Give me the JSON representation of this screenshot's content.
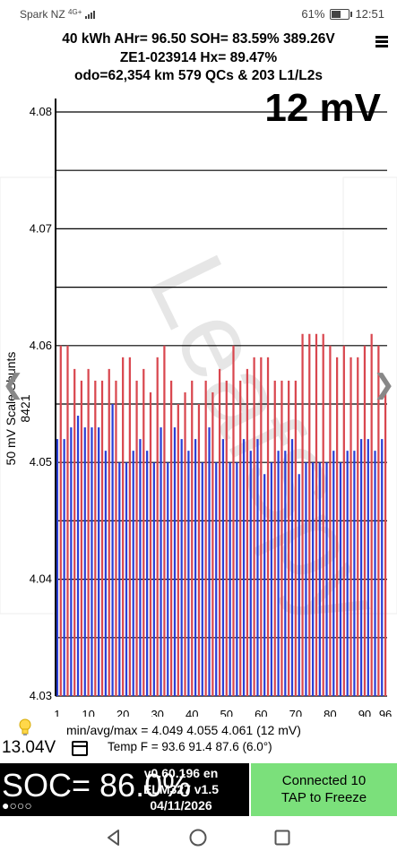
{
  "status_bar": {
    "carrier": "Spark NZ",
    "network": "4G+",
    "battery_percent": "61%",
    "battery_level": 0.61,
    "time": "12:51"
  },
  "info": {
    "line1": "40 kWh  AHr= 96.50 SOH= 83.59% 389.26V",
    "line2": "ZE1-023914   Hx= 89.47%",
    "line3": "odo=62,354 km 579 QCs & 203 L1/L2s"
  },
  "range_label": "12 mV",
  "y_axis_label": "50 mV Scale Shunts 8421",
  "stats_line": "min/avg/max = 4.049 4.055 4.061  (12 mV)",
  "temp_line": "Temp F = 93.6  91.4  87.6  (6.0°)",
  "voltage_12v": "13.04V",
  "soc_text": "SOC= 86.0%",
  "soc_dots": "●○○○",
  "version": {
    "app": "v0.60.196 en",
    "adapter": "ELM327 v1.5",
    "date": "04/11/2026"
  },
  "connected": {
    "line1": "Connected 10",
    "line2": "TAP to Freeze"
  },
  "colors": {
    "bar_red": "#d9474f",
    "bar_blue": "#2b3fd6",
    "connected_bg": "#7be07b",
    "soc_bg": "#000000"
  },
  "icons": [
    "lightbulb-icon",
    "calendar-icon",
    "menu-icon",
    "back-icon",
    "home-icon",
    "recents-icon",
    "chevron-left-icon",
    "chevron-right-icon"
  ],
  "chart_data": {
    "type": "bar",
    "title": "",
    "xlabel": "",
    "ylabel": "50 mV Scale Shunts 8421",
    "ylim": [
      4.03,
      4.08
    ],
    "y_ticks": [
      "4.03",
      "4.04",
      "4.05",
      "4.06",
      "4.07",
      "4.08"
    ],
    "x_ticks": [
      "1",
      "10",
      "20",
      "30",
      "40",
      "50",
      "60",
      "70",
      "80",
      "90",
      "96"
    ],
    "series": [
      {
        "values": [
          4.052,
          4.06,
          4.052,
          4.06,
          4.053,
          4.058,
          4.054,
          4.057,
          4.053,
          4.058,
          4.053,
          4.057,
          4.053,
          4.057,
          4.051,
          4.058,
          4.055,
          4.057,
          4.05,
          4.059,
          4.05,
          4.059,
          4.051,
          4.057,
          4.052,
          4.058,
          4.051,
          4.056,
          4.05,
          4.059,
          4.053,
          4.06,
          4.05,
          4.057,
          4.053,
          4.055,
          4.052,
          4.056,
          4.051,
          4.057,
          4.052,
          4.055,
          4.05,
          4.057,
          4.053,
          4.056,
          4.05,
          4.058,
          4.052,
          4.057,
          4.05,
          4.06,
          4.05,
          4.057,
          4.052,
          4.058,
          4.051,
          4.059,
          4.052,
          4.059,
          4.049,
          4.059,
          4.05,
          4.057,
          4.051,
          4.057,
          4.051,
          4.057,
          4.052,
          4.057,
          4.049,
          4.061,
          4.05,
          4.061,
          4.05,
          4.061,
          4.05,
          4.061,
          4.05,
          4.06,
          4.051,
          4.059,
          4.05,
          4.06,
          4.051,
          4.059,
          4.051,
          4.059,
          4.052,
          4.06,
          4.052,
          4.061,
          4.051,
          4.06,
          4.052,
          4.056
        ],
        "colors": "blue-bar on odd cells, red-bar on even cells (per image)"
      }
    ]
  }
}
